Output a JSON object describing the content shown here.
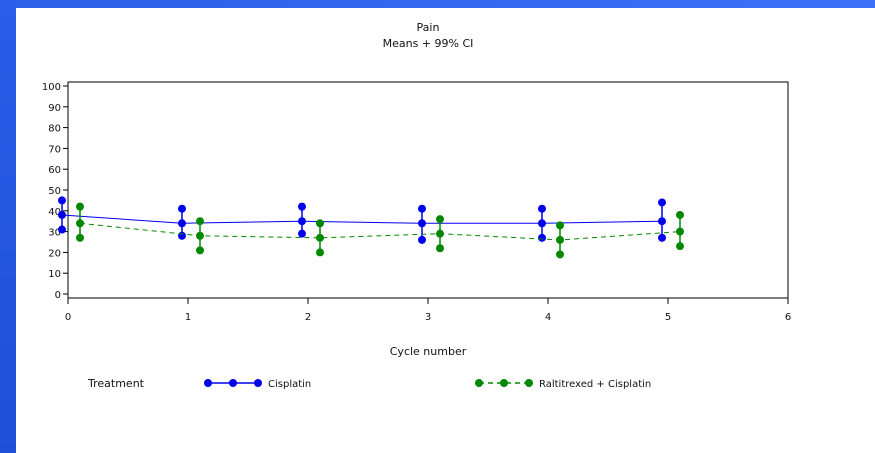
{
  "chart_data": {
    "type": "line",
    "title": "Pain",
    "subtitle": "Means + 99% CI",
    "xlabel": "Cycle number",
    "ylabel": "",
    "xlim": [
      0,
      6
    ],
    "ylim": [
      0,
      100
    ],
    "xticks": [
      "0",
      "1",
      "2",
      "3",
      "4",
      "5",
      "6"
    ],
    "yticks": [
      "0",
      "10",
      "20",
      "30",
      "40",
      "50",
      "60",
      "70",
      "80",
      "90",
      "100"
    ],
    "legend_title": "Treatment",
    "legend_position": "bottom",
    "series": [
      {
        "name": "Cisplatin",
        "color": "#0000ee",
        "line_style": "solid",
        "x_offset": -0.05,
        "x": [
          0,
          1,
          2,
          3,
          4,
          5
        ],
        "mean": [
          38,
          34,
          35,
          34,
          34,
          35
        ],
        "lower": [
          31,
          28,
          29,
          26,
          27,
          27
        ],
        "upper": [
          45,
          41,
          42,
          41,
          41,
          44
        ]
      },
      {
        "name": "Raltitrexed + Cisplatin",
        "color": "#008800",
        "line_style": "dashed",
        "x_offset": 0.1,
        "x": [
          0,
          1,
          2,
          3,
          4,
          5
        ],
        "mean": [
          34,
          28,
          27,
          29,
          26,
          30
        ],
        "lower": [
          27,
          21,
          20,
          22,
          19,
          23
        ],
        "upper": [
          42,
          35,
          34,
          36,
          33,
          38
        ]
      }
    ]
  }
}
